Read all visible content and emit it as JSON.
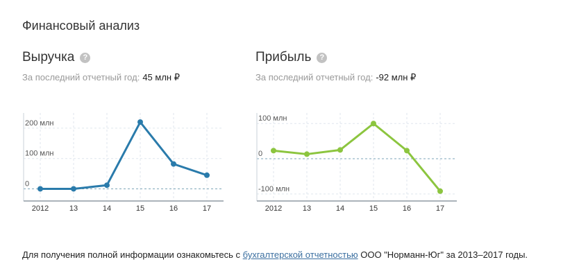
{
  "section_title": "Финансовый анализ",
  "revenue": {
    "title": "Выручка",
    "help": "?",
    "subtitle_label": "За последний отчетный год:",
    "subtitle_value": "45 млн ₽"
  },
  "profit": {
    "title": "Прибыль",
    "help": "?",
    "subtitle_label": "За последний отчетный год:",
    "subtitle_value": "-92 млн ₽"
  },
  "footer": {
    "prefix": "Для получения полной информации ознакомьтесь с",
    "link": "бухгалтерской отчетностью",
    "suffix": "ООО \"Норманн-Юг\" за 2013–2017 годы."
  },
  "colors": {
    "revenue": "#2a7bab",
    "profit": "#8cc53f",
    "grid": "#dfe6ee",
    "zero": "#7ea6b8"
  },
  "chart_data": [
    {
      "type": "line",
      "categories": [
        "2012",
        "13",
        "14",
        "15",
        "16",
        "17"
      ],
      "series": [
        {
          "values": [
            0,
            0,
            12,
            220,
            82,
            45
          ]
        }
      ],
      "ytick_values": [
        0,
        100,
        200
      ],
      "ytick_labels": [
        "0",
        "100 млн",
        "200 млн"
      ],
      "ylim": [
        -40,
        250
      ],
      "grid": true,
      "legend": "none"
    },
    {
      "type": "line",
      "categories": [
        "2012",
        "13",
        "14",
        "15",
        "16",
        "17"
      ],
      "series": [
        {
          "values": [
            23,
            13,
            25,
            100,
            23,
            -92
          ]
        }
      ],
      "ytick_values": [
        -100,
        0,
        100
      ],
      "ytick_labels": [
        "-100 млн",
        "0",
        "100 млн"
      ],
      "ylim": [
        -120,
        130
      ],
      "grid": true,
      "legend": "none"
    }
  ]
}
